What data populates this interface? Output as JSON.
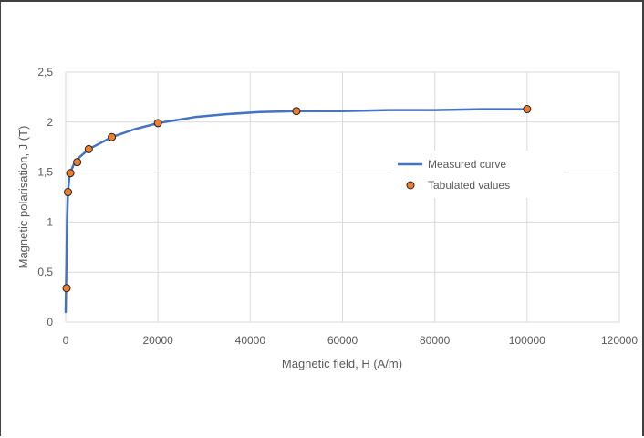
{
  "chart_data": {
    "type": "line",
    "title": "",
    "xlabel": "Magnetic field, H (A/m)",
    "ylabel": "Magnetic polarisation, J (T)",
    "xlim": [
      0,
      120000
    ],
    "ylim": [
      0,
      2.5
    ],
    "x_ticks": [
      {
        "v": 0,
        "label": "0"
      },
      {
        "v": 20000,
        "label": "20000"
      },
      {
        "v": 40000,
        "label": "40000"
      },
      {
        "v": 60000,
        "label": "60000"
      },
      {
        "v": 80000,
        "label": "80000"
      },
      {
        "v": 100000,
        "label": "100000"
      },
      {
        "v": 120000,
        "label": "120000"
      }
    ],
    "y_ticks": [
      {
        "v": 0,
        "label": "0"
      },
      {
        "v": 0.5,
        "label": "0,5"
      },
      {
        "v": 1,
        "label": "1"
      },
      {
        "v": 1.5,
        "label": "1,5"
      },
      {
        "v": 2,
        "label": "2"
      },
      {
        "v": 2.5,
        "label": "2,5"
      }
    ],
    "grid": "vertical and horizontal",
    "legend_position": "right",
    "series": [
      {
        "name": "Measured curve",
        "kind": "line",
        "color": "#4472c4",
        "x": [
          0,
          100,
          200,
          300,
          500,
          800,
          1000,
          1500,
          2000,
          3000,
          5000,
          7500,
          10000,
          15000,
          20000,
          28000,
          35000,
          42000,
          50000,
          60000,
          70000,
          80000,
          90000,
          100000
        ],
        "y": [
          0.1,
          0.4,
          0.7,
          1.0,
          1.3,
          1.45,
          1.5,
          1.55,
          1.6,
          1.65,
          1.73,
          1.79,
          1.85,
          1.93,
          1.99,
          2.05,
          2.08,
          2.1,
          2.11,
          2.11,
          2.12,
          2.12,
          2.13,
          2.13
        ]
      },
      {
        "name": "Tabulated values",
        "kind": "scatter",
        "color": "#ed7d31",
        "x": [
          200,
          500,
          1000,
          2500,
          5000,
          10000,
          20000,
          50000,
          100000
        ],
        "y": [
          0.34,
          1.3,
          1.49,
          1.6,
          1.73,
          1.85,
          1.99,
          2.11,
          2.13
        ]
      }
    ]
  }
}
